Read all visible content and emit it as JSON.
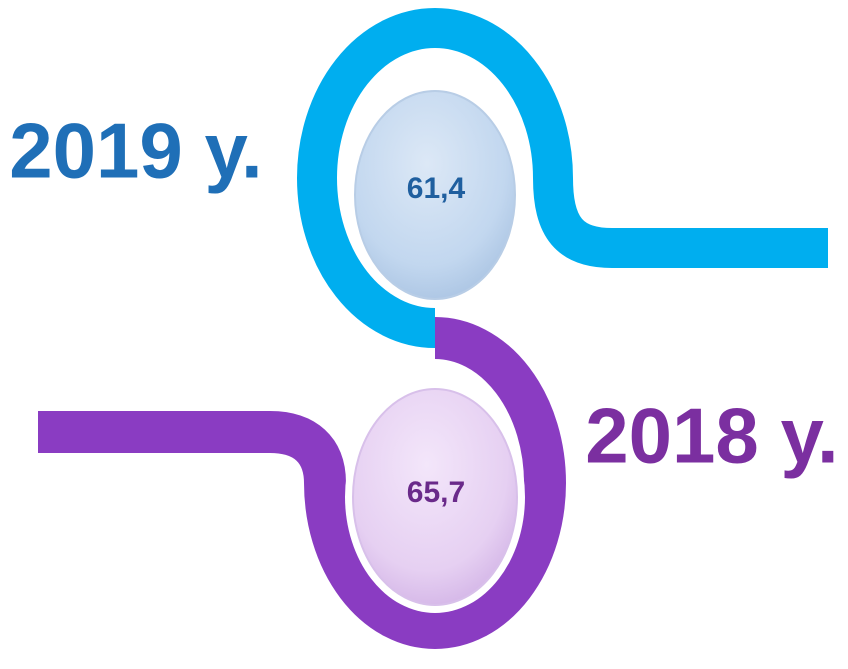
{
  "items": [
    {
      "year": "2019 у.",
      "value": "61,4"
    },
    {
      "year": "2018 у.",
      "value": "65,7"
    }
  ]
}
